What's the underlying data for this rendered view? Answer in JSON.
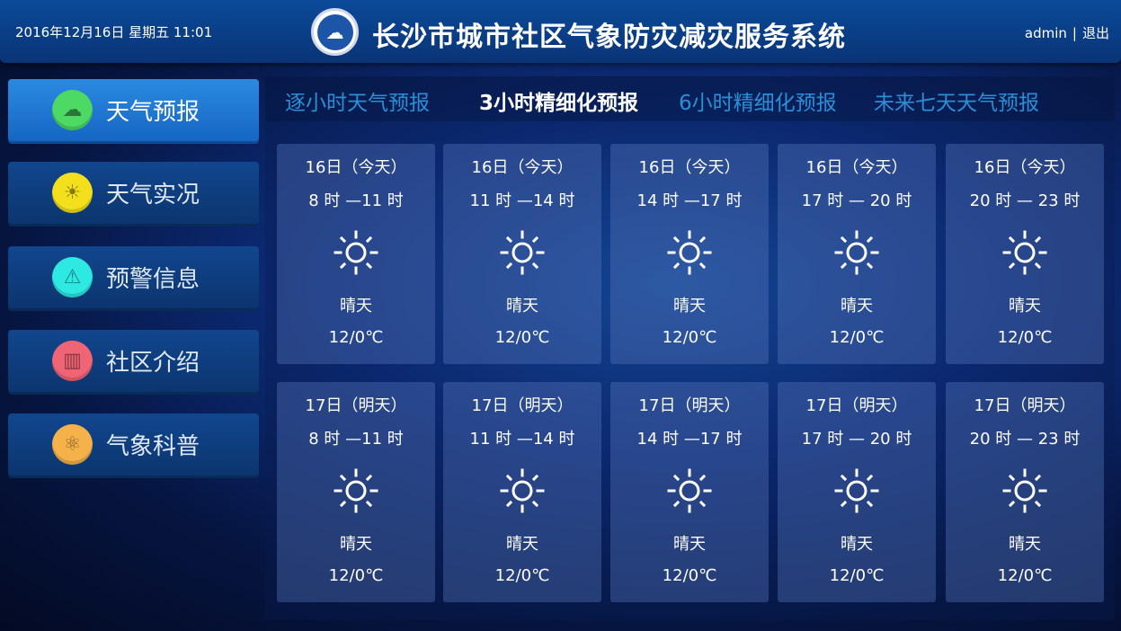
{
  "header": {
    "datetime": "2016年12月16日  星期五   11:01",
    "title": "长沙市城市社区气象防灾减灾服务系统",
    "user": "admin",
    "separator": "|",
    "logout": "退出"
  },
  "sidebar": {
    "items": [
      {
        "label": "天气预报",
        "icon": "cloud-sun-icon",
        "color": "#4cd964",
        "active": true
      },
      {
        "label": "天气实况",
        "icon": "sun-icon",
        "color": "#f3df1c",
        "active": false
      },
      {
        "label": "预警信息",
        "icon": "warning-icon",
        "color": "#2ee8e2",
        "active": false
      },
      {
        "label": "社区介绍",
        "icon": "community-icon",
        "color": "#f06575",
        "active": false
      },
      {
        "label": "气象科普",
        "icon": "atom-icon",
        "color": "#f5b24a",
        "active": false
      }
    ]
  },
  "tabs": [
    {
      "label": "逐小时天气预报",
      "active": false
    },
    {
      "label": "3小时精细化预报",
      "active": true
    },
    {
      "label": "6小时精细化预报",
      "active": false
    },
    {
      "label": "未来七天天气预报",
      "active": false
    }
  ],
  "forecast": [
    {
      "day": "16日（今天）",
      "time": "8 时 —11 时",
      "weather": "晴天",
      "temp": "12/0℃",
      "icon": "sun-icon"
    },
    {
      "day": "16日（今天）",
      "time": "11 时 —14 时",
      "weather": "晴天",
      "temp": "12/0℃",
      "icon": "sun-icon"
    },
    {
      "day": "16日（今天）",
      "time": "14 时 —17 时",
      "weather": "晴天",
      "temp": "12/0℃",
      "icon": "sun-icon"
    },
    {
      "day": "16日（今天）",
      "time": "17 时 — 20 时",
      "weather": "晴天",
      "temp": "12/0℃",
      "icon": "sun-icon"
    },
    {
      "day": "16日（今天）",
      "time": "20 时 — 23 时",
      "weather": "晴天",
      "temp": "12/0℃",
      "icon": "sun-icon"
    },
    {
      "day": "17日（明天）",
      "time": "8 时 —11 时",
      "weather": "晴天",
      "temp": "12/0℃",
      "icon": "sun-icon"
    },
    {
      "day": "17日（明天）",
      "time": "11 时 —14 时",
      "weather": "晴天",
      "temp": "12/0℃",
      "icon": "sun-icon"
    },
    {
      "day": "17日（明天）",
      "time": "14 时 —17 时",
      "weather": "晴天",
      "temp": "12/0℃",
      "icon": "sun-icon"
    },
    {
      "day": "17日（明天）",
      "time": "17 时 — 20 时",
      "weather": "晴天",
      "temp": "12/0℃",
      "icon": "sun-icon"
    },
    {
      "day": "17日（明天）",
      "time": "20 时 — 23 时",
      "weather": "晴天",
      "temp": "12/0℃",
      "icon": "sun-icon"
    }
  ]
}
